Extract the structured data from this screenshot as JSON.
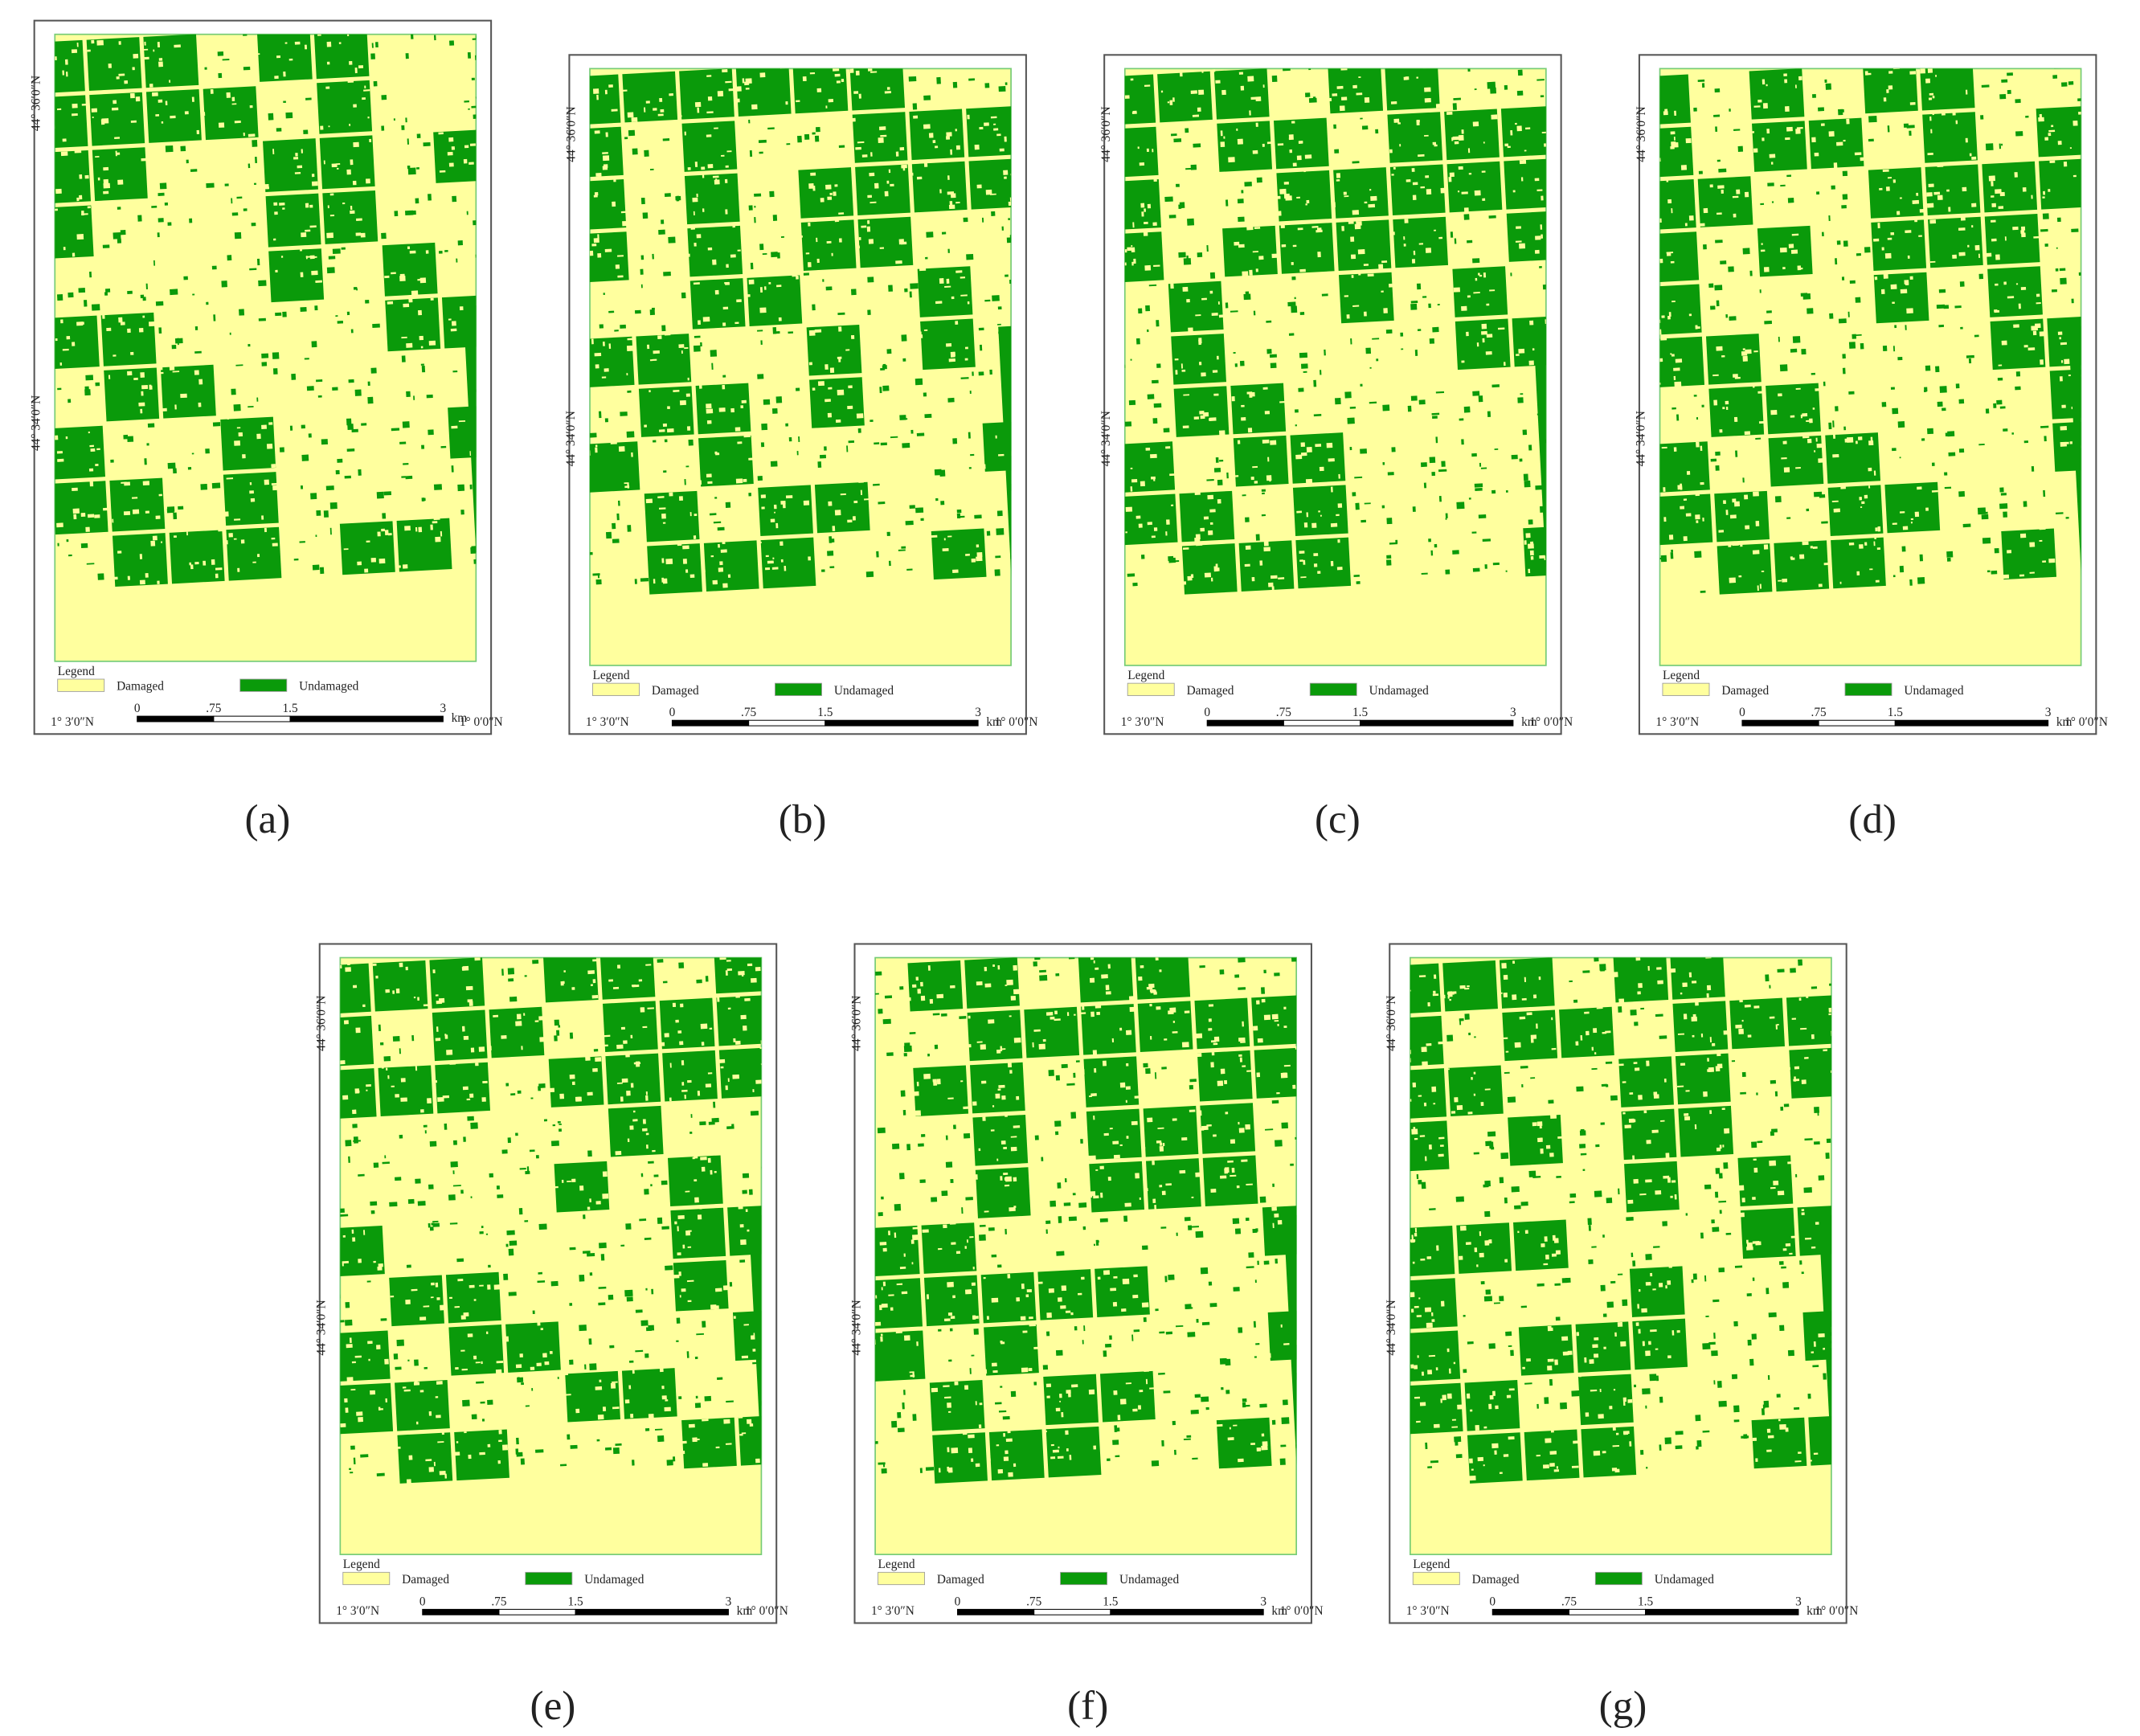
{
  "map_labels": {
    "lat_labels": [
      "44° 36′0″N",
      "44° 34′0″N"
    ],
    "lon_labels": [
      "1° 3′0″N",
      "1° 0′0″N"
    ],
    "legend_title": "Legend",
    "legend_items": [
      "Damaged",
      "Undamaged"
    ],
    "scale_ticks": [
      "0",
      ".75",
      "1.5",
      "3"
    ],
    "scale_unit": "km"
  },
  "panels": [
    {
      "caption": "(a)"
    },
    {
      "caption": "(b)"
    },
    {
      "caption": "(c)"
    },
    {
      "caption": "(d)"
    },
    {
      "caption": "(e)"
    },
    {
      "caption": "(f)"
    },
    {
      "caption": "(g)"
    }
  ]
}
